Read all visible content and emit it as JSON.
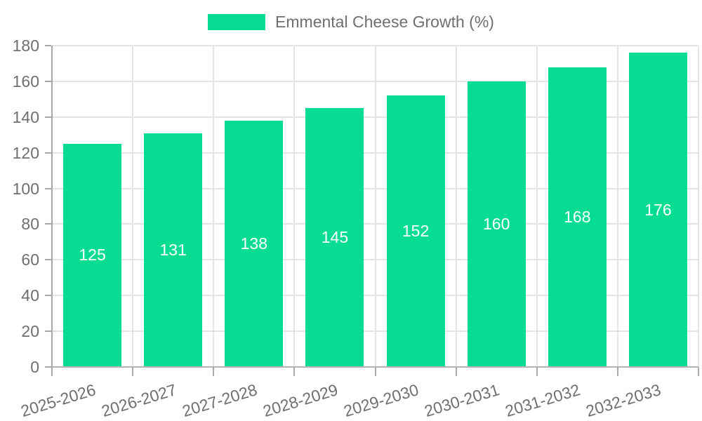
{
  "chart_data": {
    "type": "bar",
    "title": "Emmental Cheese Growth (%)",
    "categories": [
      "2025-2026",
      "2026-2027",
      "2027-2028",
      "2028-2029",
      "2029-2030",
      "2030-2031",
      "2031-2032",
      "2032-2033"
    ],
    "values": [
      125,
      131,
      138,
      145,
      152,
      160,
      168,
      176
    ],
    "xlabel": "",
    "ylabel": "",
    "ylim": [
      0,
      180
    ],
    "ytick_step": 20,
    "yticks": [
      0,
      20,
      40,
      60,
      80,
      100,
      120,
      140,
      160,
      180
    ],
    "grid": true,
    "legend_position": "top",
    "bar_color": "#07dd92",
    "value_label_color": "#ffffff",
    "axis_text_color": "#6f6f6f",
    "grid_color": "#e4e4e4",
    "axis_line_color": "#a8a8a8",
    "background_color": "#ffffff"
  }
}
